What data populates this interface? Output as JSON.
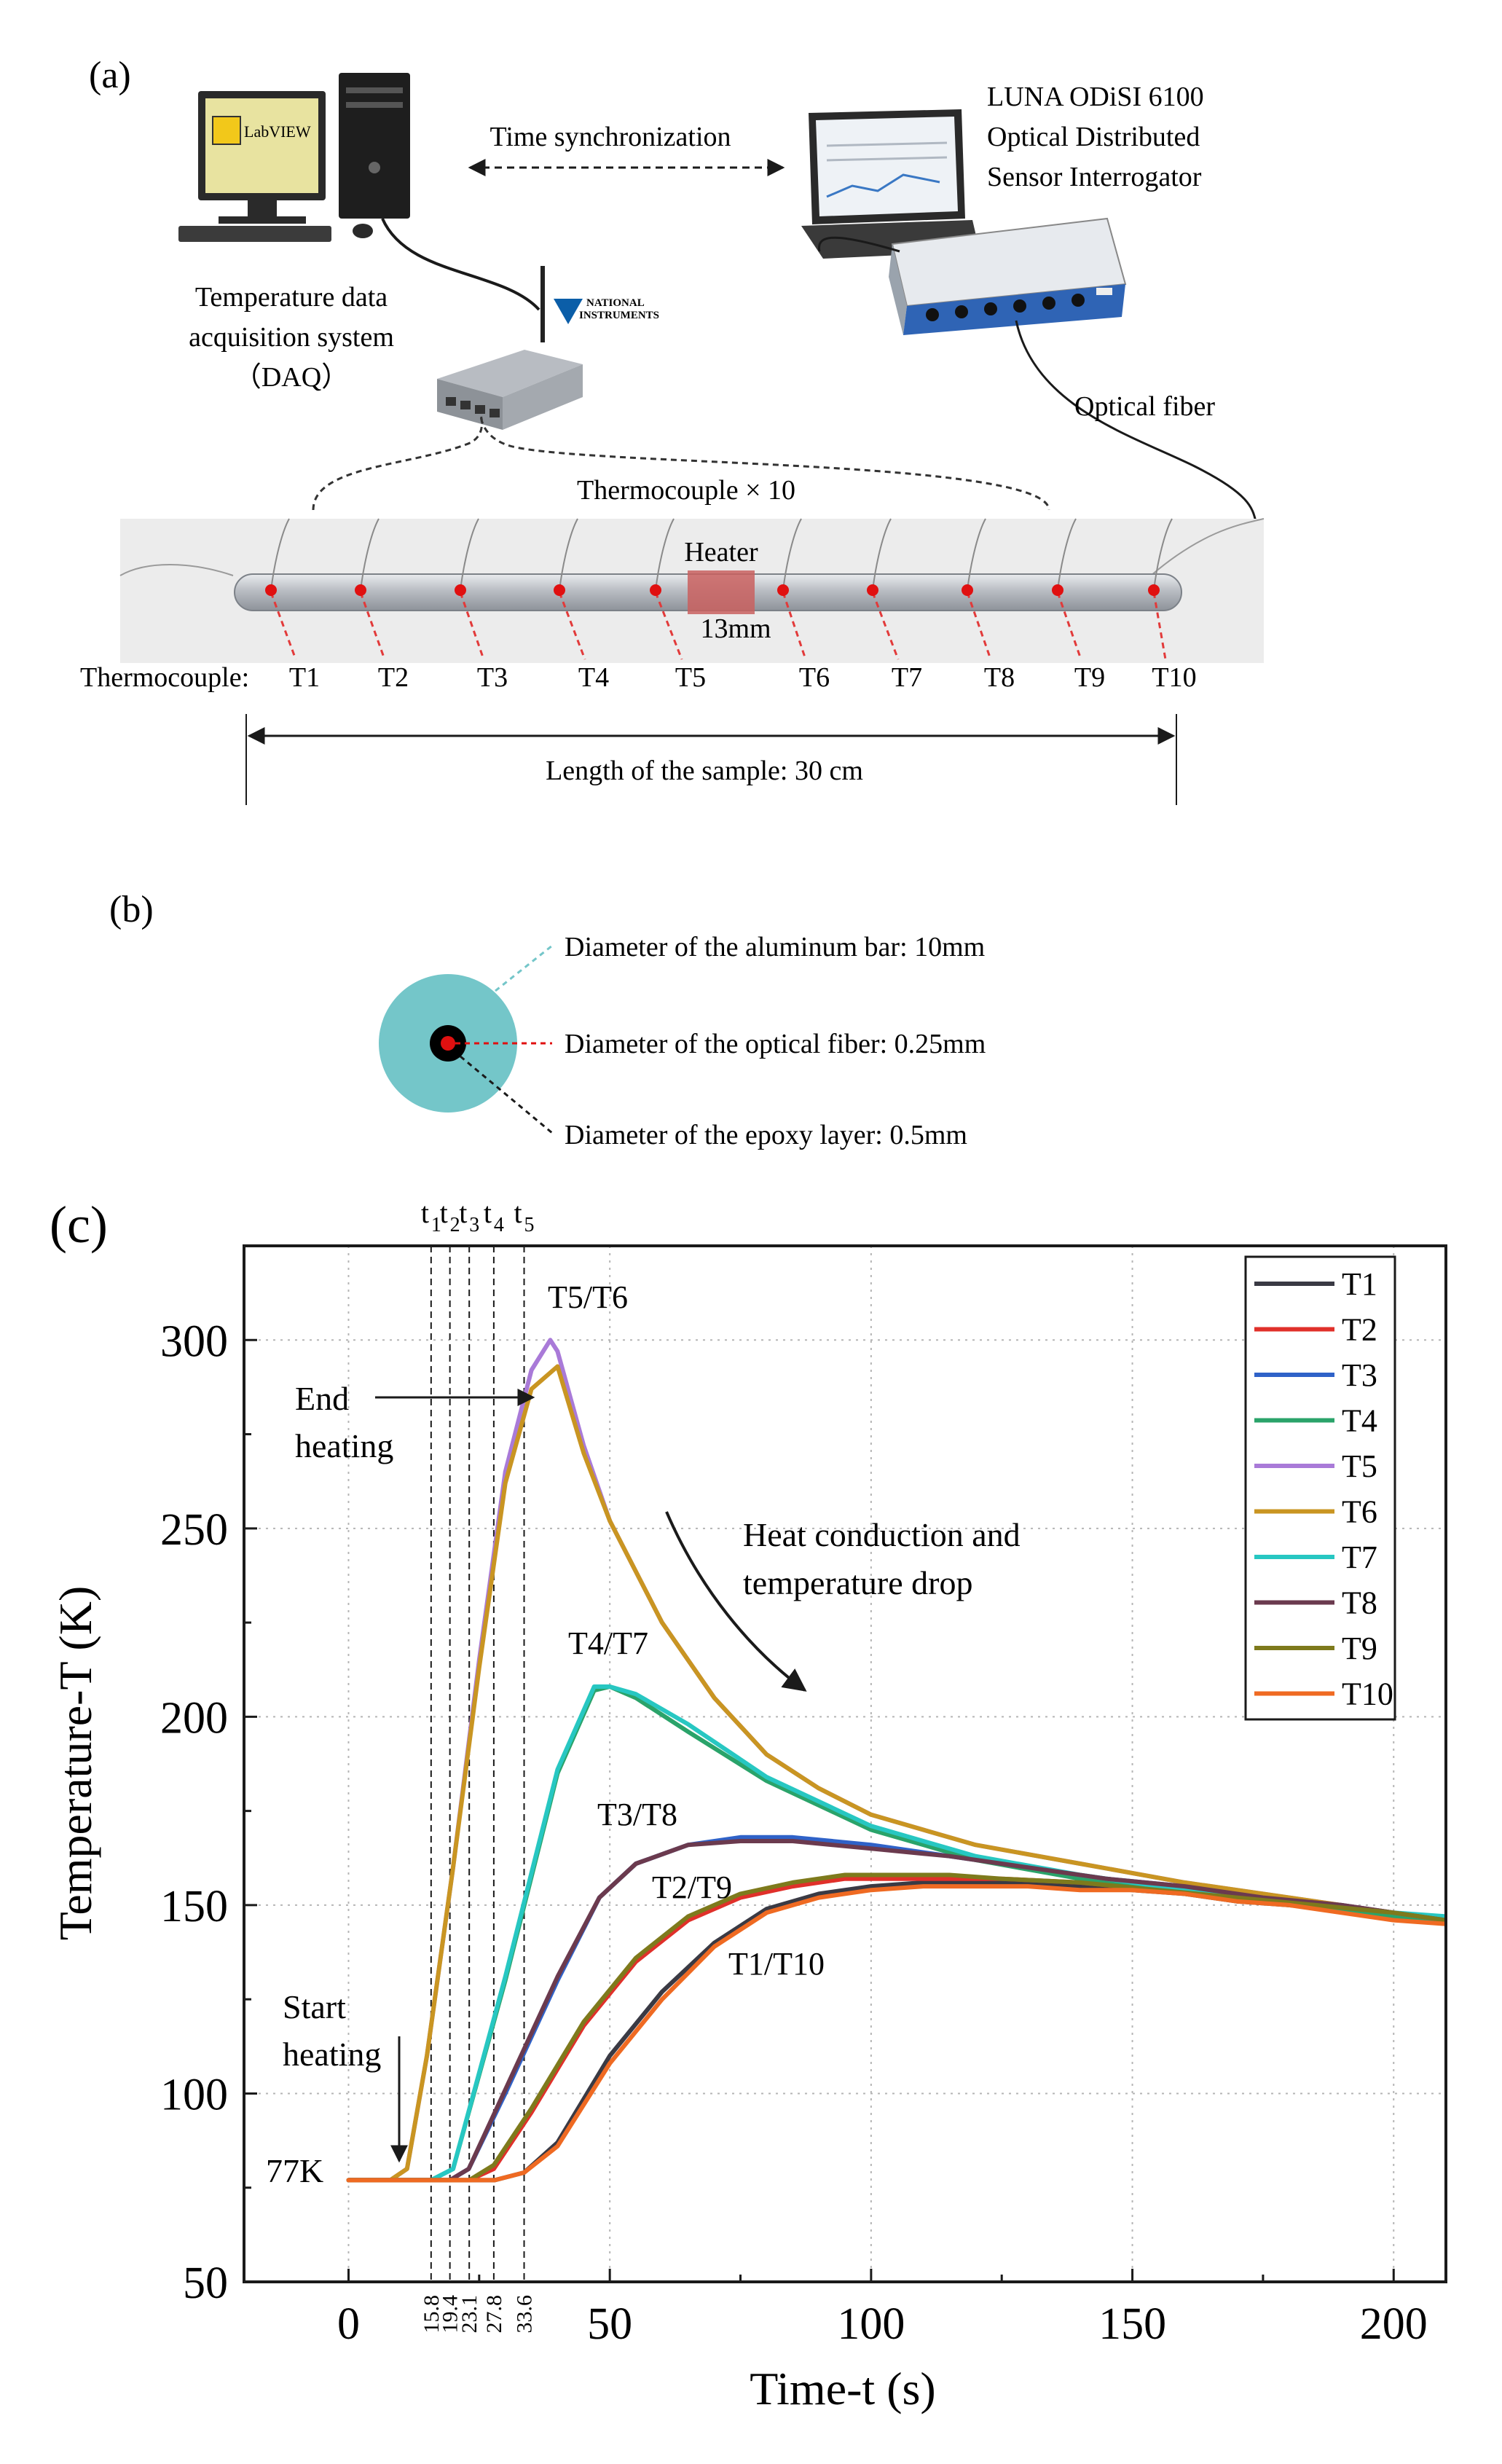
{
  "panel_a": {
    "label": "(a)",
    "labview_label": "LabVIEW",
    "sync_label": "Time synchronization",
    "luna_line1": "LUNA ODiSI 6100",
    "luna_line2": "Optical Distributed",
    "luna_line3": "Sensor Interrogator",
    "daq_line1": "Temperature data",
    "daq_line2": "acquisition system",
    "daq_line3": "（DAQ）",
    "ni_line1": "NATIONAL",
    "ni_line2": "INSTRUMENTS",
    "optical_fiber": "Optical fiber",
    "thermocouple_count": "Thermocouple × 10",
    "heater": "Heater",
    "heater_size": "13mm",
    "tc_row_label": "Thermocouple:",
    "tc_labels": [
      "T1",
      "T2",
      "T3",
      "T4",
      "T5",
      "T6",
      "T7",
      "T8",
      "T9",
      "T10"
    ],
    "length_label": "Length of the sample: 30 cm",
    "colors": {
      "bar": "#c9ccd1",
      "heater": "#c9605f",
      "marker": "#e01010",
      "dash": "#e23a3a"
    }
  },
  "panel_b": {
    "label": "(b)",
    "aluminum": "Diameter of the aluminum bar: 10mm",
    "fiber": "Diameter of the optical fiber: 0.25mm",
    "epoxy": "Diameter of the epoxy layer: 0.5mm",
    "colors": {
      "bar": "#74c6c9",
      "epoxy": "#000000",
      "fiber": "#e01010"
    }
  },
  "panel_c": {
    "label": "(c)",
    "t_markers": [
      "t",
      "t",
      "t",
      "t",
      "t"
    ],
    "t_subs": [
      "1",
      "2",
      "3",
      "4",
      "5"
    ]
  },
  "chart_data": {
    "type": "line",
    "title": "",
    "xlabel": "Time-t (s)",
    "ylabel": "Temperature-T (K)",
    "xlim": [
      -20,
      210
    ],
    "ylim": [
      50,
      325
    ],
    "xticks": [
      0,
      50,
      100,
      150,
      200
    ],
    "yticks": [
      50,
      100,
      150,
      200,
      250,
      300
    ],
    "grid": true,
    "legend_position": "top-right",
    "vlines": [
      15.8,
      19.4,
      23.1,
      27.8,
      33.6
    ],
    "vline_labels": [
      "15.8",
      "19.4",
      "23.1",
      "27.8",
      "33.6"
    ],
    "annotations": {
      "end_heating_1": "End",
      "end_heating_2": "heating",
      "start_heating_1": "Start",
      "start_heating_2": "heating",
      "base_temp": "77K",
      "drop_1": "Heat conduction and",
      "drop_2": "temperature drop",
      "pair_56": "T5/T6",
      "pair_47": "T4/T7",
      "pair_38": "T3/T8",
      "pair_29": "T2/T9",
      "pair_110": "T1/T10"
    },
    "series": [
      {
        "name": "T1",
        "color": "#3a3a44",
        "x": [
          0,
          10,
          20,
          28,
          33.6,
          40,
          50,
          60,
          70,
          80,
          90,
          100,
          110,
          120,
          130,
          140,
          150,
          160,
          170,
          180,
          190,
          200,
          210
        ],
        "y": [
          77,
          77,
          77,
          77,
          79,
          87,
          110,
          127,
          140,
          149,
          153,
          155,
          156,
          156,
          156,
          155,
          154,
          153,
          151,
          150,
          149,
          147,
          146
        ]
      },
      {
        "name": "T2",
        "color": "#e0302a",
        "x": [
          0,
          10,
          20,
          23.1,
          27.8,
          35,
          45,
          55,
          65,
          75,
          85,
          95,
          105,
          115,
          125,
          140,
          155,
          170,
          185,
          200,
          210
        ],
        "y": [
          77,
          77,
          77,
          77,
          80,
          95,
          118,
          135,
          146,
          152,
          155,
          157,
          157,
          157,
          157,
          156,
          154,
          152,
          150,
          148,
          146
        ]
      },
      {
        "name": "T3",
        "color": "#2f62c8",
        "x": [
          0,
          10,
          19.4,
          23,
          30,
          40,
          48,
          55,
          65,
          75,
          85,
          100,
          115,
          130,
          145,
          160,
          175,
          190,
          200,
          210
        ],
        "y": [
          77,
          77,
          77,
          80,
          100,
          130,
          152,
          161,
          166,
          168,
          168,
          166,
          163,
          160,
          157,
          155,
          152,
          150,
          148,
          146
        ]
      },
      {
        "name": "T4",
        "color": "#2aa36a",
        "x": [
          0,
          10,
          15.8,
          20,
          30,
          40,
          47,
          50,
          55,
          65,
          80,
          100,
          120,
          140,
          160,
          180,
          200,
          210
        ],
        "y": [
          77,
          77,
          77,
          80,
          130,
          185,
          207,
          208,
          205,
          196,
          183,
          170,
          162,
          157,
          153,
          150,
          147,
          146
        ]
      },
      {
        "name": "T5",
        "color": "#a97ad8",
        "x": [
          0,
          8,
          11.2,
          15,
          20,
          25,
          30,
          35,
          38.6,
          40,
          45,
          50,
          60,
          70,
          80,
          90,
          100,
          120,
          140,
          160,
          180,
          200,
          210
        ],
        "y": [
          77,
          77,
          80,
          110,
          160,
          215,
          265,
          292,
          300,
          297,
          272,
          252,
          225,
          205,
          190,
          181,
          174,
          166,
          161,
          156,
          152,
          148,
          146
        ]
      },
      {
        "name": "T6",
        "color": "#c99522",
        "x": [
          0,
          8,
          11.2,
          15,
          20,
          25,
          30,
          35,
          40,
          45,
          50,
          60,
          70,
          80,
          90,
          100,
          120,
          140,
          160,
          180,
          200,
          210
        ],
        "y": [
          77,
          77,
          80,
          110,
          160,
          213,
          262,
          287,
          293,
          270,
          252,
          225,
          205,
          190,
          181,
          174,
          166,
          161,
          156,
          152,
          148,
          146
        ]
      },
      {
        "name": "T7",
        "color": "#27c7c2",
        "x": [
          0,
          10,
          15.8,
          20,
          30,
          40,
          47,
          50,
          55,
          65,
          80,
          100,
          120,
          140,
          160,
          180,
          200,
          210
        ],
        "y": [
          77,
          77,
          77,
          80,
          131,
          186,
          208,
          208,
          206,
          198,
          184,
          171,
          163,
          158,
          154,
          151,
          148,
          147
        ]
      },
      {
        "name": "T8",
        "color": "#6b3a4e",
        "x": [
          0,
          10,
          19.4,
          23,
          30,
          40,
          48,
          55,
          65,
          75,
          85,
          100,
          115,
          130,
          145,
          160,
          175,
          190,
          200,
          210
        ],
        "y": [
          77,
          77,
          77,
          80,
          101,
          131,
          152,
          161,
          166,
          167,
          167,
          165,
          163,
          160,
          157,
          155,
          152,
          150,
          148,
          146
        ]
      },
      {
        "name": "T9",
        "color": "#7e7a1c",
        "x": [
          0,
          10,
          20,
          23.1,
          27.8,
          35,
          45,
          55,
          65,
          75,
          85,
          95,
          105,
          115,
          125,
          140,
          155,
          170,
          185,
          200,
          210
        ],
        "y": [
          77,
          77,
          77,
          77,
          81,
          96,
          119,
          136,
          147,
          153,
          156,
          158,
          158,
          158,
          157,
          156,
          154,
          152,
          150,
          148,
          146
        ]
      },
      {
        "name": "T10",
        "color": "#ef6a22",
        "x": [
          0,
          10,
          20,
          28,
          33.6,
          40,
          50,
          60,
          70,
          80,
          90,
          100,
          110,
          120,
          130,
          140,
          150,
          160,
          170,
          180,
          190,
          200,
          210
        ],
        "y": [
          77,
          77,
          77,
          77,
          79,
          86,
          108,
          125,
          139,
          148,
          152,
          154,
          155,
          155,
          155,
          154,
          154,
          153,
          151,
          150,
          148,
          146,
          145
        ]
      }
    ]
  }
}
